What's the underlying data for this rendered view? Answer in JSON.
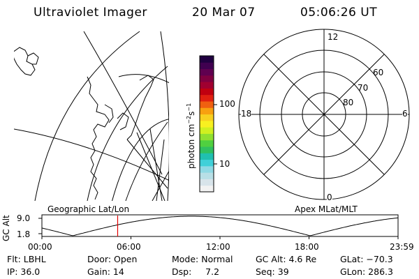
{
  "header": {
    "title": "Ultraviolet Imager",
    "date": "20 Mar 07",
    "time": "05:06:26 UT"
  },
  "colorbar": {
    "label_main": "photon cm",
    "label_exp1": "−2",
    "label_mid": "s",
    "label_exp2": "−1",
    "tick_high": "100",
    "tick_low": "10",
    "colors": [
      "#f2f2f2",
      "#d8e4ea",
      "#b8dfe6",
      "#8fd9e4",
      "#40d0d8",
      "#20c0b0",
      "#30c060",
      "#50d040",
      "#90e030",
      "#d0f020",
      "#f8f020",
      "#f8d020",
      "#f8a010",
      "#f06010",
      "#e02010",
      "#c00010",
      "#a00030",
      "#800040",
      "#600050",
      "#400050",
      "#200040"
    ]
  },
  "polar": {
    "mlt_top": "12",
    "mlt_left": "18",
    "mlt_right": "6",
    "mlt_bottom": "0",
    "lat_60": "60",
    "lat_70": "70",
    "lat_80": "80"
  },
  "timeline": {
    "left_label": "Geographic Lat/Lon",
    "right_label": "Apex MLat/MLT",
    "axis_label": "GC Alt",
    "y_top": "9.0",
    "y_bottom": "1.8",
    "ticks": [
      "00:00",
      "06:00",
      "12:00",
      "18:00",
      "23:59"
    ],
    "current_time_fraction": 0.2127
  },
  "info": {
    "flt": "Flt: LBHL",
    "ip": "IP: 36.0",
    "door": "Door: Open",
    "gain": "Gain: 14",
    "mode": "Mode: Normal",
    "dsp": "Dsp:     7.2",
    "gcalt": "GC Alt: 4.6 Re",
    "seq": "Seq: 39",
    "glat": "GLat: −70.3",
    "glon": "GLon: 286.3"
  }
}
